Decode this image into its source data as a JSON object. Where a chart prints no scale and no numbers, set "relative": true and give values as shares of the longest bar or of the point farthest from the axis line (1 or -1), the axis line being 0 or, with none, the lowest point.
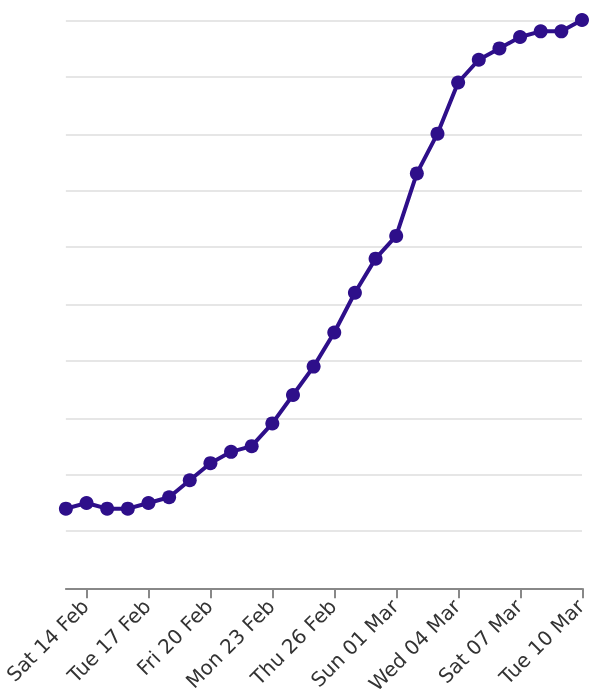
{
  "chart_data": {
    "type": "line",
    "relative": true,
    "categories": [
      null,
      "Sat 14 Feb",
      null,
      null,
      "Tue 17 Feb",
      null,
      null,
      "Fri 20 Feb",
      null,
      null,
      "Mon 23 Feb",
      null,
      null,
      "Thu 26 Feb",
      null,
      null,
      "Sun 01 Mar",
      null,
      null,
      "Wed 04 Mar",
      null,
      null,
      "Sat 07 Mar",
      null,
      null,
      "Tue 10 Mar"
    ],
    "series": [
      {
        "color": "#2e0f8a",
        "values": [
          0.14,
          0.15,
          0.14,
          0.14,
          0.15,
          0.16,
          0.19,
          0.22,
          0.24,
          0.25,
          0.29,
          0.34,
          0.39,
          0.45,
          0.52,
          0.58,
          0.62,
          0.73,
          0.8,
          0.89,
          0.93,
          0.95,
          0.97,
          0.98,
          0.98,
          1
        ]
      }
    ],
    "grid": "y",
    "marker": "circle",
    "line_style": "solid"
  }
}
